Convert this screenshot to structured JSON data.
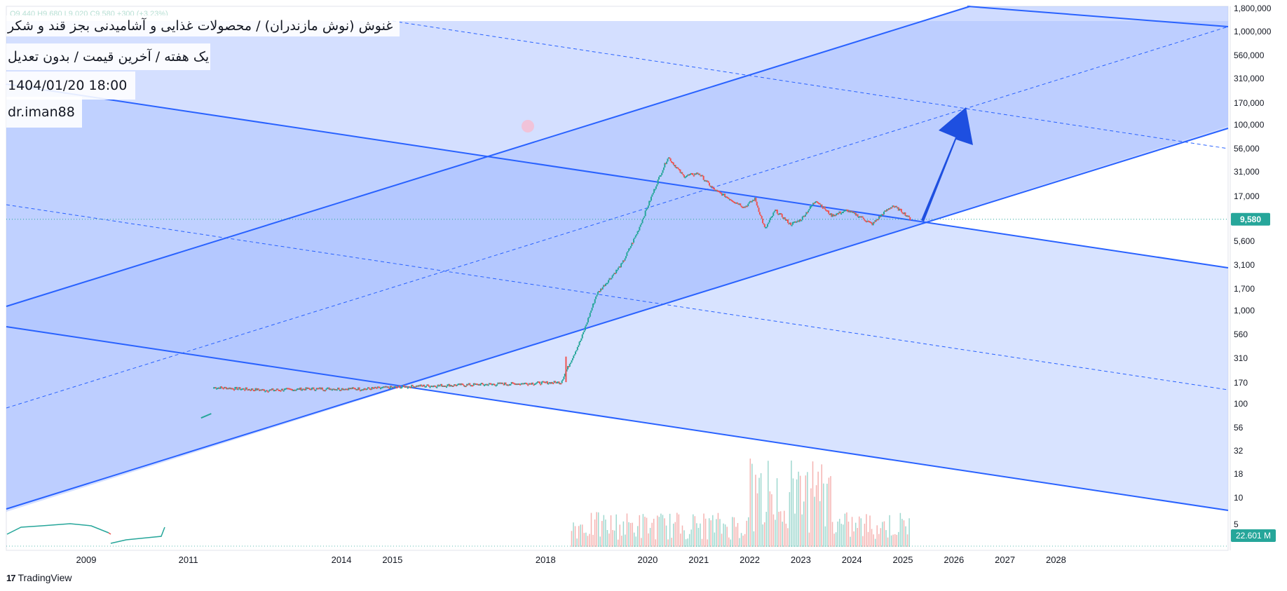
{
  "header": {
    "title": "غنوش (نوش مازندران) / محصولات غذایی و آشامیدنی بجز قند و شکر",
    "subtitle": "یک هفته / آخرین قیمت / بدون تعدیل",
    "datetime": "1404/01/20 18:00",
    "author": "dr.iman88",
    "ohlc_faint": "O9,440  H9,680  L9,020  C9,580  +300 (+3.23%)"
  },
  "branding": {
    "logo_text": "TradingView",
    "logo_mark": "17"
  },
  "price_label": "9,580",
  "volume_label": "22.601 M",
  "colors": {
    "up": "#26a69a",
    "down": "#ef5350",
    "channel_line": "#2962ff",
    "channel_fill": "#a9c0ff",
    "arrow": "#1e4fe0",
    "price_tag": "#26a69a"
  },
  "chart_data": {
    "type": "candlestick",
    "scale": "log",
    "x_tick_labels": [
      "2009",
      "2011",
      "2014",
      "2015",
      "2018",
      "2020",
      "2021",
      "2022",
      "2023",
      "2024",
      "2025",
      "2026",
      "2027",
      "2028"
    ],
    "y_tick_labels": [
      "1,800,000",
      "1,000,000",
      "560,000",
      "310,000",
      "170,000",
      "100,000",
      "56,000",
      "31,000",
      "17,000",
      "9,580",
      "5,600",
      "3,100",
      "1,700",
      "1,000",
      "560",
      "310",
      "170",
      "100",
      "56",
      "32",
      "18",
      "10",
      "5"
    ],
    "last_price": 9580,
    "last_volume": "22.601 M",
    "price_series": [
      {
        "date": "2011.3",
        "value": 70
      },
      {
        "date": "2011.5",
        "value": 150
      },
      {
        "date": "2012.5",
        "value": 140
      },
      {
        "date": "2013.5",
        "value": 145
      },
      {
        "date": "2014.5",
        "value": 145
      },
      {
        "date": "2015.5",
        "value": 155
      },
      {
        "date": "2016.5",
        "value": 160
      },
      {
        "date": "2017.5",
        "value": 165
      },
      {
        "date": "2018.3",
        "value": 170
      },
      {
        "date": "2018.7",
        "value": 500
      },
      {
        "date": "2019.0",
        "value": 1500
      },
      {
        "date": "2019.5",
        "value": 3200
      },
      {
        "date": "2019.8",
        "value": 7000
      },
      {
        "date": "2020.2",
        "value": 25000
      },
      {
        "date": "2020.4",
        "value": 45000
      },
      {
        "date": "2020.7",
        "value": 28000
      },
      {
        "date": "2021.0",
        "value": 30000
      },
      {
        "date": "2021.3",
        "value": 20000
      },
      {
        "date": "2021.7",
        "value": 15000
      },
      {
        "date": "2021.9",
        "value": 13000
      },
      {
        "date": "2022.1",
        "value": 16000
      },
      {
        "date": "2022.3",
        "value": 7500
      },
      {
        "date": "2022.5",
        "value": 12000
      },
      {
        "date": "2022.8",
        "value": 8500
      },
      {
        "date": "2023.0",
        "value": 9500
      },
      {
        "date": "2023.3",
        "value": 15500
      },
      {
        "date": "2023.6",
        "value": 10500
      },
      {
        "date": "2023.9",
        "value": 12000
      },
      {
        "date": "2024.2",
        "value": 10000
      },
      {
        "date": "2024.4",
        "value": 8500
      },
      {
        "date": "2024.6",
        "value": 11000
      },
      {
        "date": "2024.8",
        "value": 13500
      },
      {
        "date": "2025.0",
        "value": 11500
      },
      {
        "date": "2025.15",
        "value": 9580
      }
    ]
  }
}
